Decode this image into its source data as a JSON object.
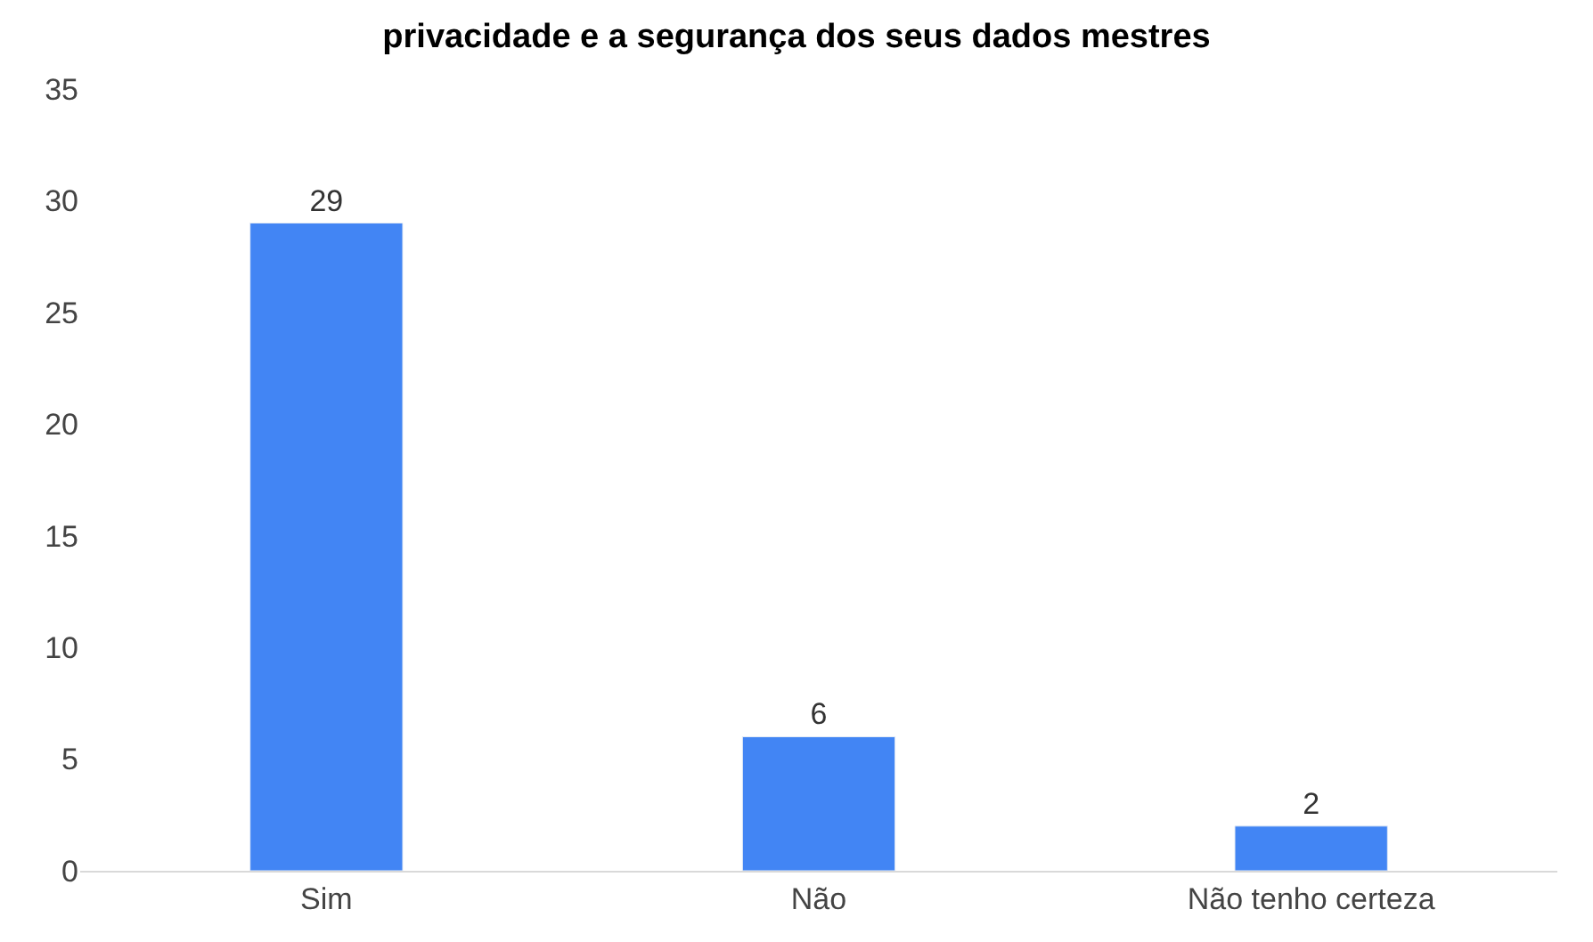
{
  "chart_data": {
    "type": "bar",
    "title": "privacidade e a segurança dos seus dados mestres",
    "categories": [
      "Sim",
      "Não",
      "Não tenho certeza"
    ],
    "values": [
      29,
      6,
      2
    ],
    "color": "#4285f4",
    "data_labels": true,
    "ylim": [
      0,
      35
    ],
    "yticks": [
      0,
      5,
      10,
      15,
      20,
      25,
      30,
      35
    ]
  }
}
